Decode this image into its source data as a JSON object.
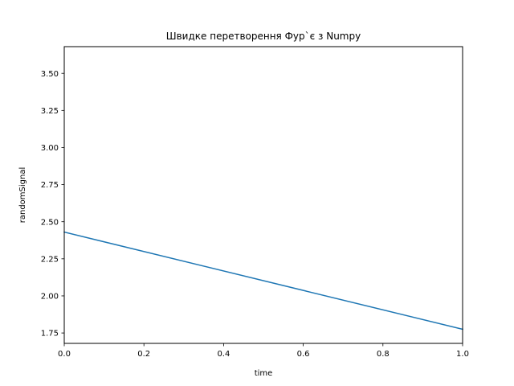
{
  "chart_data": {
    "type": "line",
    "title": "Швидке перетворення Фур`є з Numpy",
    "xlabel": "time",
    "ylabel": "randomSignal",
    "xlim": [
      0,
      1
    ],
    "ylim": [
      1.68,
      3.68
    ],
    "xticks": [
      {
        "value": 0.0,
        "label": "0.0"
      },
      {
        "value": 0.2,
        "label": "0.2"
      },
      {
        "value": 0.4,
        "label": "0.4"
      },
      {
        "value": 0.6,
        "label": "0.6"
      },
      {
        "value": 0.8,
        "label": "0.8"
      },
      {
        "value": 1.0,
        "label": "1.0"
      }
    ],
    "yticks": [
      {
        "value": 1.75,
        "label": "1.75"
      },
      {
        "value": 2.0,
        "label": "2.00"
      },
      {
        "value": 2.25,
        "label": "2.25"
      },
      {
        "value": 2.5,
        "label": "2.50"
      },
      {
        "value": 2.75,
        "label": "2.75"
      },
      {
        "value": 3.0,
        "label": "3.00"
      },
      {
        "value": 3.25,
        "label": "3.25"
      },
      {
        "value": 3.5,
        "label": "3.50"
      }
    ],
    "grid": false,
    "series": [
      {
        "color": "#1f77b4",
        "x": [
          0.0,
          1.0
        ],
        "y": [
          2.43,
          1.775
        ]
      }
    ]
  }
}
